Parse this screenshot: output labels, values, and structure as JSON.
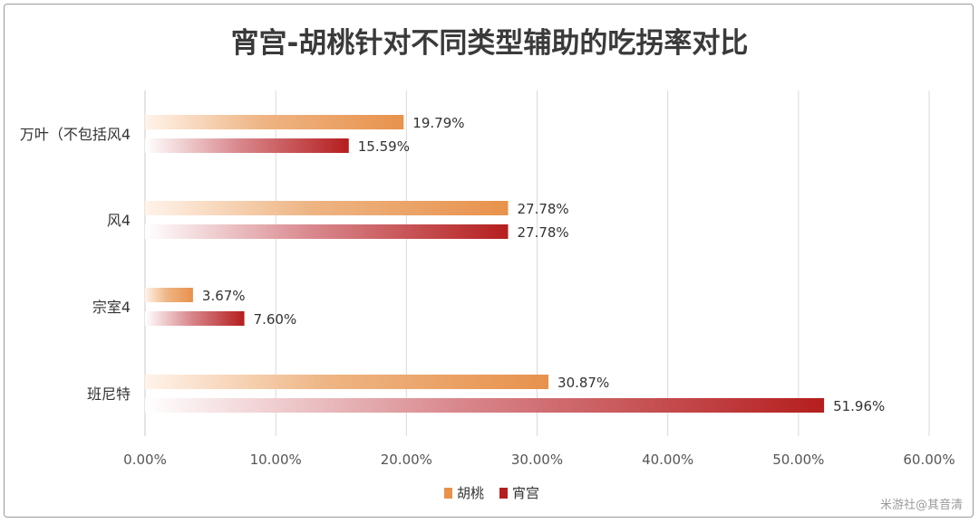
{
  "chart_data": {
    "type": "bar",
    "orientation": "horizontal",
    "title": "宵宫-胡桃针对不同类型辅助的吃拐率对比",
    "categories": [
      "万叶（不包括风4",
      "风4",
      "宗室4",
      "班尼特"
    ],
    "series": [
      {
        "name": "胡桃",
        "values": [
          19.79,
          27.78,
          3.67,
          30.87
        ],
        "color": "#e8924c"
      },
      {
        "name": "宵宫",
        "values": [
          15.59,
          27.78,
          7.6,
          51.96
        ],
        "color": "#b51e1e"
      }
    ],
    "value_unit": "%",
    "xlim": [
      0,
      60
    ],
    "x_ticks": [
      "0.00%",
      "10.00%",
      "20.00%",
      "30.00%",
      "40.00%",
      "50.00%",
      "60.00%"
    ],
    "data_labels": [
      [
        "19.79%",
        "27.78%",
        "3.67%",
        "30.87%"
      ],
      [
        "15.59%",
        "27.78%",
        "7.60%",
        "51.96%"
      ]
    ],
    "grid": "vertical",
    "legend_position": "bottom"
  },
  "watermark": "米游社@其音清"
}
